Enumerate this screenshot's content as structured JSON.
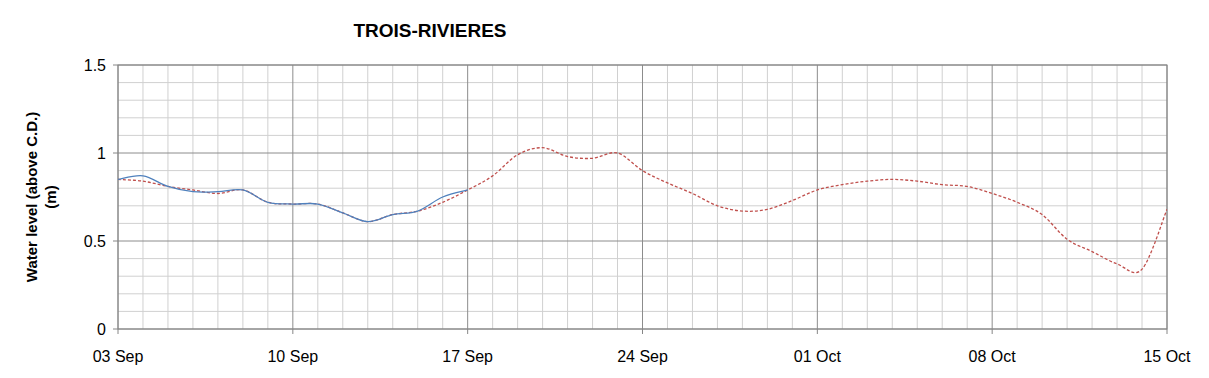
{
  "chart_data": {
    "type": "line",
    "title": "TROIS-RIVIERES",
    "ylabel": [
      "Water level (above C.D.)",
      "(m)"
    ],
    "categories": [
      "03 Sep",
      null,
      null,
      null,
      null,
      null,
      null,
      "10 Sep",
      null,
      null,
      null,
      null,
      null,
      null,
      "17 Sep",
      null,
      null,
      null,
      null,
      null,
      null,
      "24 Sep",
      null,
      null,
      null,
      null,
      null,
      null,
      "01 Oct",
      null,
      null,
      null,
      null,
      null,
      null,
      "08 Oct",
      null,
      null,
      null,
      null,
      null,
      null,
      "15 Oct"
    ],
    "series": [
      {
        "color": "#4f81bd",
        "line_style": "solid",
        "values": [
          0.85,
          0.87,
          0.81,
          0.78,
          0.78,
          0.79,
          0.72,
          0.71,
          0.71,
          0.66,
          0.61,
          0.65,
          0.67,
          0.75,
          0.79,
          null,
          null,
          null,
          null,
          null,
          null,
          null,
          null,
          null,
          null,
          null,
          null,
          null,
          null,
          null,
          null,
          null,
          null,
          null,
          null,
          null,
          null,
          null,
          null,
          null,
          null,
          null,
          null
        ]
      },
      {
        "color": "#c0504d",
        "line_style": "dashed",
        "values": [
          0.85,
          0.84,
          0.81,
          0.79,
          0.77,
          0.79,
          0.72,
          0.71,
          0.71,
          0.66,
          0.61,
          0.65,
          0.67,
          0.72,
          0.79,
          0.87,
          0.99,
          1.03,
          0.98,
          0.97,
          1.0,
          0.9,
          0.83,
          0.77,
          0.7,
          0.67,
          0.68,
          0.73,
          0.79,
          0.82,
          0.84,
          0.85,
          0.84,
          0.82,
          0.81,
          0.77,
          0.72,
          0.65,
          0.51,
          0.44,
          0.37,
          0.34,
          0.68
        ]
      }
    ],
    "ylim": [
      0,
      1.5
    ],
    "yticks": [
      0,
      0.5,
      1,
      1.5
    ],
    "grid": true
  }
}
